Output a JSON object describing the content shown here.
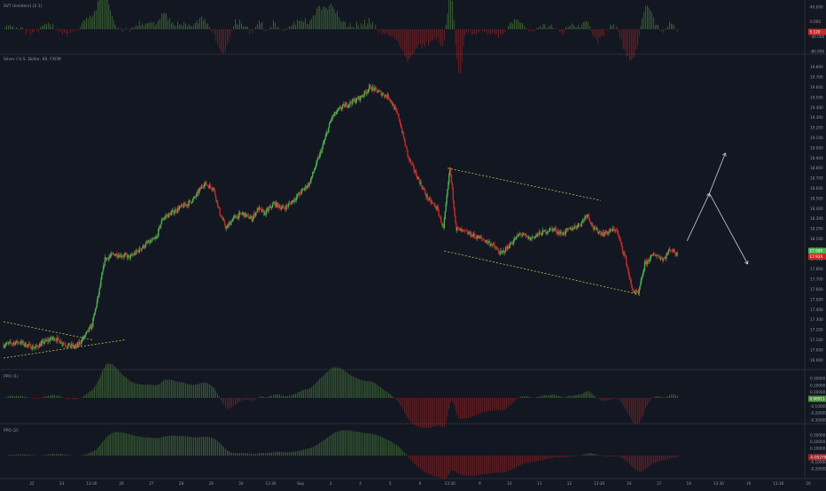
{
  "colors": {
    "background": "#131722",
    "up": "#4caf50",
    "down": "#c62828",
    "osc_up": "#4e8c3a",
    "osc_down": "#9c2424",
    "trend": "#b8c24a",
    "axis_text": "#8f949e",
    "separator": "#2a2e39",
    "projection": "#c9cdd6"
  },
  "panels": {
    "top": {
      "label": "SVT (Insiders) (2.1)",
      "value_badge": "5.120",
      "ticks": [
        "40.000",
        "0.000",
        "-40.000",
        "-80.000"
      ]
    },
    "main": {
      "label": "Silver / U.S. Dollar, 60, FXCM",
      "price_badges": [
        "17.980",
        "17.924"
      ],
      "ticks": [
        "19.800",
        "19.700",
        "19.600",
        "19.500",
        "19.400",
        "19.300",
        "19.200",
        "19.100",
        "19.000",
        "18.900",
        "18.800",
        "18.700",
        "18.600",
        "18.500",
        "18.400",
        "18.300",
        "18.200",
        "18.100",
        "18.000",
        "17.900",
        "17.800",
        "17.700",
        "17.600",
        "17.500",
        "17.400",
        "17.300",
        "17.200",
        "17.100",
        "17.000",
        "16.900"
      ]
    },
    "osc1": {
      "label": "PPO (1)",
      "value_badge": "0.08911",
      "ticks": [
        "0.30000",
        "0.20000",
        "0.10000",
        "0.00000",
        "-0.10000",
        "-0.20000",
        "-0.30000"
      ]
    },
    "osc2": {
      "label": "PPO (2)",
      "value_badge": "-0.05279",
      "ticks": [
        "0.30000",
        "0.20000",
        "0.10000",
        "0.00000",
        "-0.10000",
        "-0.20000"
      ]
    }
  },
  "time_axis": [
    "22",
    "23",
    "13:30",
    "26",
    "27",
    "28",
    "29",
    "30",
    "13:30",
    "Sep",
    "3",
    "4",
    "5",
    "6",
    "13:30",
    "9",
    "10",
    "11",
    "12",
    "13:30",
    "16",
    "17",
    "18",
    "13:30",
    "19",
    "13:30",
    "20"
  ],
  "chart_data": {
    "type": "candlestick",
    "title": "Silver / U.S. Dollar, 60, FXCM",
    "ylim": [
      16.85,
      19.85
    ],
    "price_path": [
      [
        0,
        17.05
      ],
      [
        5,
        17.08
      ],
      [
        10,
        17.02
      ],
      [
        13,
        17.08
      ],
      [
        16,
        17.12
      ],
      [
        20,
        17.05
      ],
      [
        23,
        17.03
      ],
      [
        26,
        17.15
      ],
      [
        28,
        17.25
      ],
      [
        30,
        17.55
      ],
      [
        32,
        17.9
      ],
      [
        35,
        17.95
      ],
      [
        40,
        17.92
      ],
      [
        45,
        18.05
      ],
      [
        48,
        18.1
      ],
      [
        50,
        18.3
      ],
      [
        55,
        18.4
      ],
      [
        58,
        18.45
      ],
      [
        60,
        18.5
      ],
      [
        63,
        18.65
      ],
      [
        66,
        18.6
      ],
      [
        68,
        18.35
      ],
      [
        70,
        18.2
      ],
      [
        72,
        18.3
      ],
      [
        75,
        18.35
      ],
      [
        78,
        18.3
      ],
      [
        80,
        18.4
      ],
      [
        82,
        18.35
      ],
      [
        85,
        18.45
      ],
      [
        88,
        18.4
      ],
      [
        90,
        18.45
      ],
      [
        93,
        18.55
      ],
      [
        96,
        18.65
      ],
      [
        100,
        19.0
      ],
      [
        103,
        19.3
      ],
      [
        106,
        19.4
      ],
      [
        109,
        19.45
      ],
      [
        112,
        19.5
      ],
      [
        115,
        19.6
      ],
      [
        118,
        19.55
      ],
      [
        121,
        19.5
      ],
      [
        124,
        19.3
      ],
      [
        127,
        18.9
      ],
      [
        130,
        18.7
      ],
      [
        133,
        18.5
      ],
      [
        136,
        18.4
      ],
      [
        138,
        18.2
      ],
      [
        140,
        18.8
      ],
      [
        142,
        18.2
      ],
      [
        146,
        18.15
      ],
      [
        150,
        18.1
      ],
      [
        153,
        18.05
      ],
      [
        156,
        17.95
      ],
      [
        159,
        18.05
      ],
      [
        162,
        18.15
      ],
      [
        165,
        18.1
      ],
      [
        168,
        18.15
      ],
      [
        172,
        18.2
      ],
      [
        175,
        18.15
      ],
      [
        178,
        18.2
      ],
      [
        181,
        18.25
      ],
      [
        183,
        18.35
      ],
      [
        185,
        18.2
      ],
      [
        188,
        18.15
      ],
      [
        192,
        18.2
      ],
      [
        195,
        17.9
      ],
      [
        197,
        17.6
      ],
      [
        199,
        17.55
      ],
      [
        201,
        17.85
      ],
      [
        204,
        17.95
      ],
      [
        207,
        17.9
      ],
      [
        209,
        18.0
      ],
      [
        211,
        17.95
      ]
    ],
    "trendlines": [
      {
        "from": [
          0,
          17.28
        ],
        "to": [
          28,
          17.1
        ]
      },
      {
        "from": [
          0,
          16.92
        ],
        "to": [
          38,
          17.1
        ]
      },
      {
        "from": [
          139,
          18.8
        ],
        "to": [
          187,
          18.48
        ]
      },
      {
        "from": [
          138,
          17.98
        ],
        "to": [
          199,
          17.55
        ]
      }
    ],
    "projection": [
      [
        214,
        18.08
      ],
      [
        221,
        18.55
      ],
      [
        226,
        18.95
      ],
      [
        221,
        18.55
      ],
      [
        233,
        17.85
      ]
    ],
    "x_range": [
      0,
      250
    ]
  }
}
